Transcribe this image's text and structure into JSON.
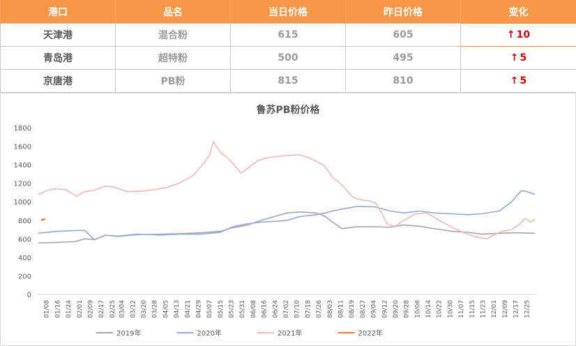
{
  "table": {
    "headers": [
      "港口",
      "品名",
      "当日价格",
      "昨日价格",
      "变化"
    ],
    "rows": [
      {
        "port": "天津港",
        "product": "混合粉",
        "today": "615",
        "yesterday": "605",
        "change_arrow": "↑",
        "change": "10"
      },
      {
        "port": "青岛港",
        "product": "超特粉",
        "today": "500",
        "yesterday": "495",
        "change_arrow": "↑",
        "change": "5"
      },
      {
        "port": "京唐港",
        "product": "PB粉",
        "today": "815",
        "yesterday": "810",
        "change_arrow": "↑",
        "change": "5"
      }
    ],
    "header_color": "#f79646",
    "change_color": "#e00000"
  },
  "chart_data": {
    "type": "line",
    "title": "鲁苏PB粉价格",
    "xlabel": "",
    "ylabel": "",
    "ylim": [
      0,
      1800
    ],
    "yticks": [
      0,
      200,
      400,
      600,
      800,
      1000,
      1200,
      1400,
      1600,
      1800
    ],
    "xticks": [
      "01/08",
      "01/16",
      "01/24",
      "02/01",
      "02/09",
      "02/17",
      "02/25",
      "03/04",
      "03/12",
      "03/20",
      "03/28",
      "04/05",
      "04/13",
      "04/21",
      "04/29",
      "05/07",
      "05/15",
      "05/23",
      "05/31",
      "06/08",
      "06/16",
      "06/24",
      "07/02",
      "07/10",
      "07/18",
      "07/26",
      "08/03",
      "08/11",
      "08/19",
      "08/27",
      "09/04",
      "09/12",
      "09/20",
      "09/28",
      "10/06",
      "10/14",
      "10/22",
      "10/30",
      "11/07",
      "11/15",
      "11/23",
      "12/01",
      "12/09",
      "12/17",
      "12/25"
    ],
    "grid": false,
    "legend": "bottom",
    "series": [
      {
        "name": "2019年",
        "color": "#a6a6a6",
        "x": [
          "01/02",
          "01/15",
          "01/29",
          "02/05",
          "02/12",
          "02/20",
          "03/01",
          "03/15",
          "04/01",
          "04/15",
          "05/01",
          "05/15",
          "05/24",
          "06/03",
          "06/14",
          "06/26",
          "07/03",
          "07/12",
          "07/24",
          "07/31",
          "08/05",
          "08/12",
          "08/23",
          "09/05",
          "09/16",
          "09/26",
          "10/08",
          "10/18",
          "11/01",
          "11/12",
          "11/22",
          "12/05",
          "12/18",
          "12/31"
        ],
        "values": [
          555,
          560,
          570,
          600,
          590,
          640,
          625,
          645,
          650,
          655,
          665,
          680,
          720,
          745,
          800,
          850,
          880,
          890,
          880,
          840,
          780,
          710,
          730,
          730,
          725,
          750,
          735,
          710,
          680,
          670,
          650,
          660,
          665,
          660
        ]
      },
      {
        "name": "2020年",
        "color": "#8eaadb",
        "x": [
          "01/02",
          "01/15",
          "01/29",
          "02/05",
          "02/12",
          "02/20",
          "03/01",
          "03/15",
          "04/01",
          "04/15",
          "05/01",
          "05/15",
          "05/24",
          "06/03",
          "06/14",
          "06/26",
          "07/03",
          "07/12",
          "07/24",
          "07/31",
          "08/05",
          "08/12",
          "08/23",
          "09/05",
          "09/16",
          "09/26",
          "10/08",
          "10/18",
          "11/01",
          "11/12",
          "11/22",
          "12/05",
          "12/14",
          "12/21",
          "12/25",
          "12/31"
        ],
        "values": [
          660,
          680,
          690,
          690,
          590,
          640,
          630,
          650,
          640,
          650,
          650,
          670,
          730,
          760,
          780,
          790,
          800,
          840,
          860,
          880,
          900,
          920,
          950,
          945,
          900,
          880,
          900,
          880,
          870,
          860,
          870,
          900,
          1000,
          1120,
          1110,
          1080
        ]
      },
      {
        "name": "2021年",
        "color": "#f4b6b0",
        "x": [
          "01/02",
          "01/08",
          "01/14",
          "01/22",
          "01/30",
          "02/05",
          "02/11",
          "02/20",
          "02/26",
          "03/08",
          "03/15",
          "03/22",
          "04/05",
          "04/15",
          "04/25",
          "05/02",
          "05/07",
          "05/10",
          "05/12",
          "05/16",
          "05/20",
          "05/25",
          "05/30",
          "06/03",
          "06/12",
          "06/20",
          "06/26",
          "07/05",
          "07/11",
          "07/18",
          "07/24",
          "07/30",
          "08/06",
          "08/12",
          "08/20",
          "08/26",
          "09/01",
          "09/06",
          "09/10",
          "09/14",
          "09/20",
          "09/24",
          "10/05",
          "10/13",
          "10/22",
          "11/01",
          "11/10",
          "11/18",
          "11/26",
          "12/01",
          "12/07",
          "12/14",
          "12/20",
          "12/24",
          "12/28",
          "12/31"
        ],
        "values": [
          1080,
          1120,
          1140,
          1130,
          1060,
          1110,
          1120,
          1170,
          1160,
          1110,
          1110,
          1120,
          1150,
          1200,
          1280,
          1400,
          1500,
          1650,
          1600,
          1520,
          1480,
          1400,
          1310,
          1350,
          1450,
          1480,
          1490,
          1500,
          1510,
          1480,
          1440,
          1390,
          1250,
          1180,
          1050,
          1020,
          1010,
          980,
          880,
          760,
          730,
          780,
          870,
          880,
          800,
          720,
          660,
          620,
          600,
          640,
          680,
          700,
          760,
          820,
          780,
          810
        ]
      },
      {
        "name": "2022年",
        "color": "#ed7d31",
        "x": [
          "01/04",
          "01/05",
          "01/06",
          "01/07"
        ],
        "values": [
          800,
          805,
          810,
          815
        ]
      }
    ]
  }
}
